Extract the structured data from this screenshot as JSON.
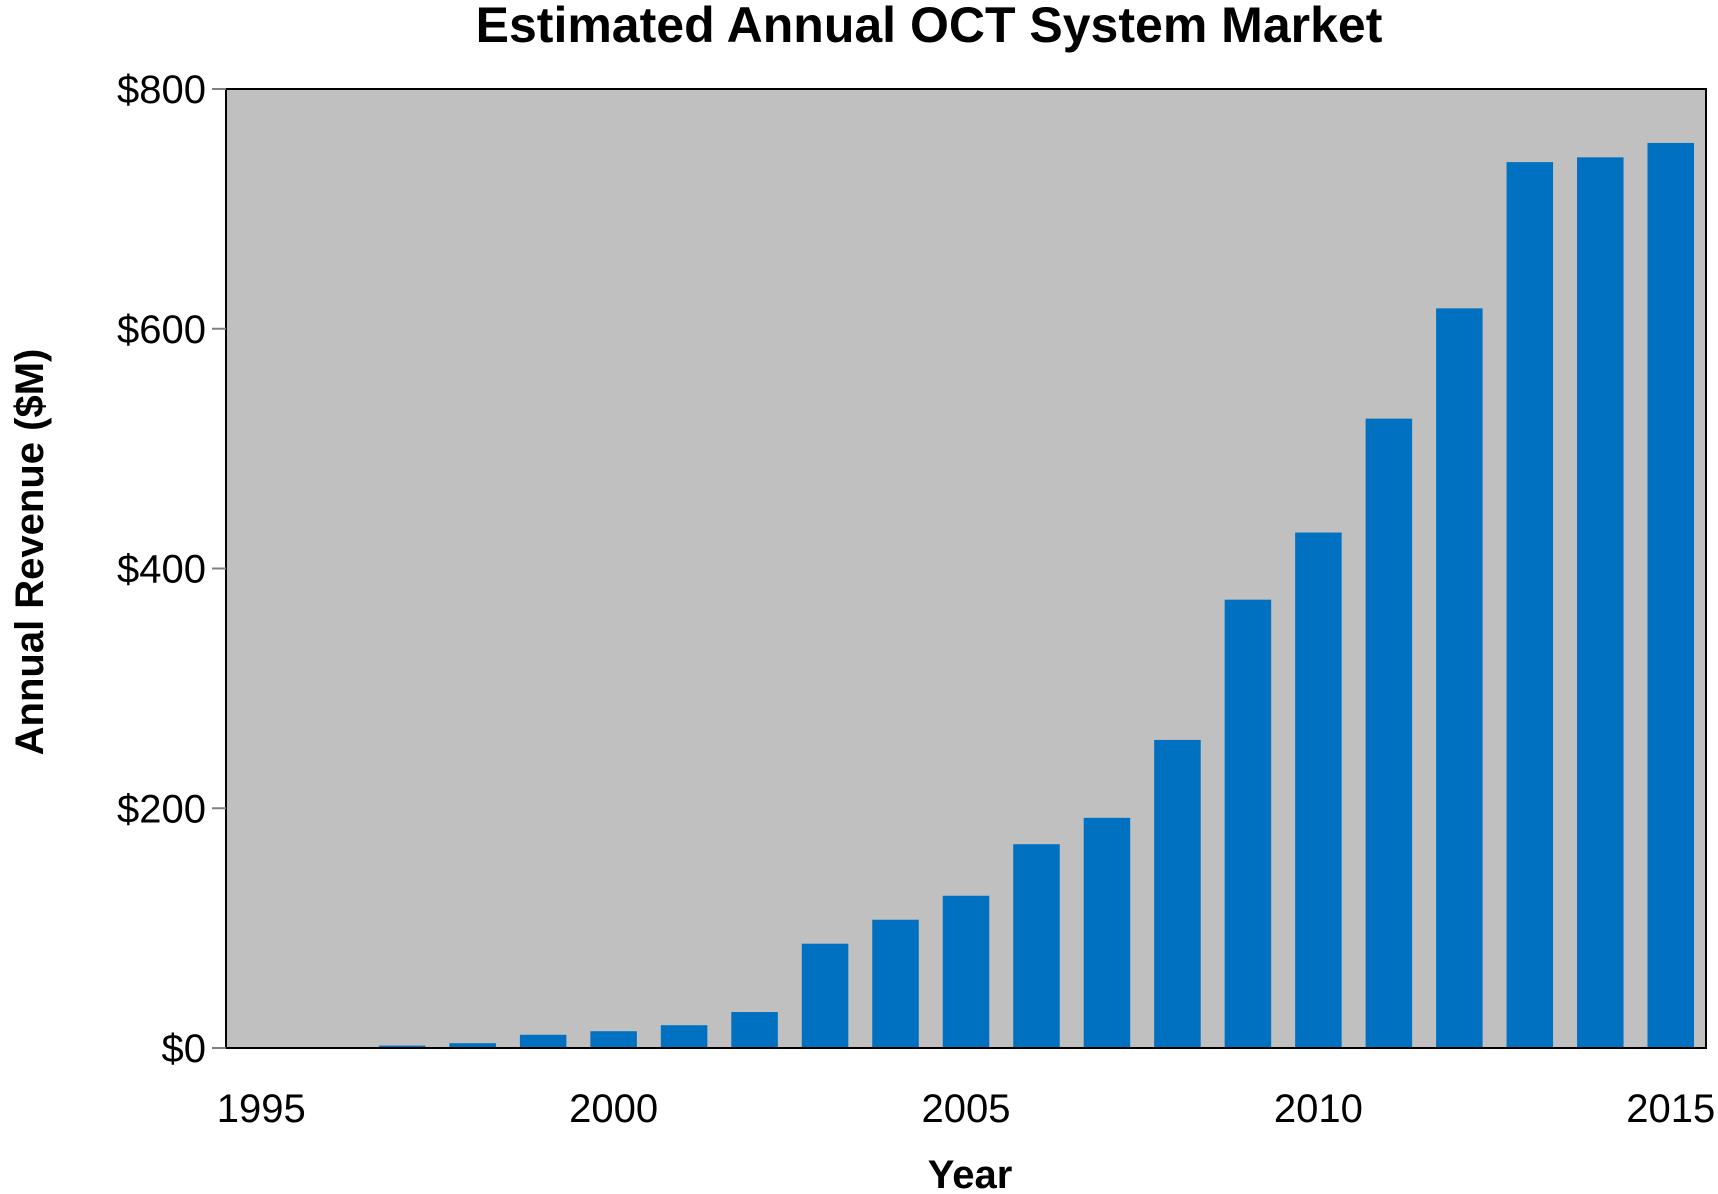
{
  "chart_data": {
    "type": "bar",
    "title": "Estimated Annual OCT System Market",
    "xlabel": "Year",
    "ylabel": "Annual Revenue ($M)",
    "x": [
      1995,
      1996,
      1997,
      1998,
      1999,
      2000,
      2001,
      2002,
      2003,
      2004,
      2005,
      2006,
      2007,
      2008,
      2009,
      2010,
      2011,
      2012,
      2013,
      2014,
      2015
    ],
    "values": [
      0,
      0,
      2,
      4,
      11,
      14,
      19,
      30,
      87,
      107,
      127,
      170,
      192,
      257,
      374,
      430,
      525,
      617,
      739,
      743,
      755
    ],
    "xticks": [
      "1995",
      "2000",
      "2005",
      "2010",
      "2015"
    ],
    "yticks": [
      "$0",
      "$200",
      "$400",
      "$600",
      "$800"
    ],
    "ytick_values": [
      0,
      200,
      400,
      600,
      800
    ],
    "ylim": [
      0,
      800
    ],
    "grid": false,
    "legend": "none",
    "colors": {
      "bar": "#0070C0",
      "plot_background": "#C0C0C0",
      "axis": "#808080"
    }
  }
}
